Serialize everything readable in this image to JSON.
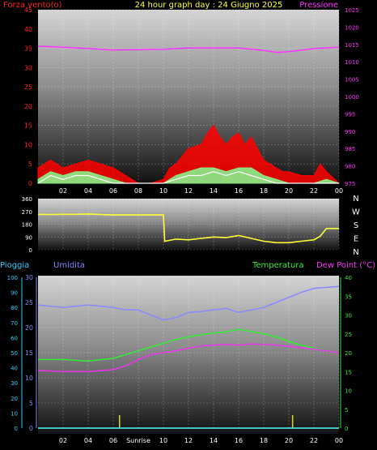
{
  "chart_data": [
    {
      "type": "line",
      "title": "24 hour graph day : 24 Giugno 2025",
      "left_axis_label": "Forza vento",
      "left_axis_unit": "(o)",
      "right_axis_label": "Pressione",
      "x_ticks": [
        "02",
        "04",
        "06",
        "08",
        "10",
        "12",
        "14",
        "16",
        "18",
        "20",
        "22",
        "00"
      ],
      "y_left_ticks": [
        "0",
        "5",
        "10",
        "15",
        "20",
        "25",
        "30",
        "35",
        "40",
        "45"
      ],
      "y_right_ticks": [
        "975",
        "980",
        "985",
        "990",
        "995",
        "1000",
        "1005",
        "1010",
        "1015",
        "1020",
        "1025"
      ],
      "ylim_left": [
        0,
        45
      ],
      "ylim_right": [
        975,
        1025
      ],
      "xlim_hours": [
        0,
        24
      ],
      "grid": true,
      "colors": {
        "gust": "#ff0000",
        "wind": "#88ee88",
        "speed_avg": "#ffffff",
        "pressure": "#ff33ff"
      },
      "series": [
        {
          "role": "pressure",
          "axis": "right",
          "x": [
            0,
            2,
            4,
            6,
            8,
            10,
            12,
            14,
            16,
            18,
            19,
            20,
            22,
            24
          ],
          "values": [
            1014.5,
            1014.2,
            1013.8,
            1013.4,
            1013.5,
            1013.6,
            1014.0,
            1014.0,
            1014.0,
            1013.3,
            1012.7,
            1012.9,
            1013.8,
            1014.2
          ]
        },
        {
          "role": "gust",
          "axis": "left",
          "x": [
            0,
            1,
            2,
            3,
            4,
            5,
            6,
            7,
            8,
            9,
            10,
            10.5,
            11,
            12,
            13,
            13.5,
            14,
            14.5,
            15,
            15.5,
            16,
            16.5,
            17,
            17.5,
            18,
            18.5,
            19,
            19.5,
            20,
            21,
            22,
            22.5,
            23,
            24
          ],
          "values": [
            4,
            6,
            4,
            5,
            6,
            5,
            4,
            2,
            0,
            0,
            1,
            4,
            5,
            9,
            10,
            13,
            15,
            12,
            10,
            12,
            13,
            10,
            12,
            9,
            6,
            5,
            4,
            3,
            3,
            2,
            2,
            5,
            3,
            0
          ]
        },
        {
          "role": "wind",
          "axis": "left",
          "x": [
            0,
            1,
            2,
            3,
            4,
            5,
            6,
            7,
            8,
            10,
            11,
            12,
            13,
            14,
            15,
            16,
            17,
            18,
            19,
            20,
            22,
            23,
            24
          ],
          "values": [
            1,
            3,
            2,
            3,
            3,
            2,
            1,
            0,
            0,
            0,
            2,
            3,
            4,
            4,
            3,
            4,
            4,
            2,
            1,
            0,
            0,
            1,
            0
          ]
        },
        {
          "role": "speed_avg",
          "axis": "left",
          "x": [
            0,
            1,
            2,
            3,
            4,
            5,
            6,
            7,
            8,
            10,
            11,
            12,
            13,
            14,
            15,
            16,
            17,
            18,
            19,
            20,
            22,
            23,
            24
          ],
          "values": [
            0,
            2,
            1,
            2,
            2,
            1,
            0,
            0,
            0,
            0,
            1,
            2,
            2,
            3,
            2,
            3,
            2,
            1,
            0,
            0,
            0,
            0,
            0
          ]
        }
      ]
    },
    {
      "type": "scatter",
      "y_ticks": [
        "360",
        "270",
        "180",
        "90",
        "0"
      ],
      "right_labels": [
        "N",
        "W",
        "S",
        "E",
        "N"
      ],
      "ylim": [
        0,
        360
      ],
      "xlim_hours": [
        0,
        24
      ],
      "grid": true,
      "colors": {
        "direction": "#ffff33"
      },
      "series": [
        {
          "role": "wind_direction",
          "x": [
            0,
            1,
            2,
            3,
            4,
            5,
            6,
            7,
            8,
            9,
            10,
            10.1,
            11,
            12,
            13,
            14,
            15,
            16,
            17,
            18,
            19,
            20,
            21,
            22,
            22.5,
            23,
            24
          ],
          "values": [
            250,
            248,
            250,
            250,
            252,
            248,
            245,
            245,
            245,
            245,
            245,
            60,
            75,
            70,
            80,
            90,
            85,
            100,
            80,
            60,
            50,
            50,
            60,
            70,
            95,
            150,
            150
          ]
        }
      ]
    },
    {
      "type": "line",
      "header_labels": [
        "Pioggia",
        "Umidita",
        "Temperatura",
        "Dew Point (°C)"
      ],
      "x_ticks": [
        "02",
        "04",
        "06",
        "Sunrise",
        "10",
        "12",
        "14",
        "16",
        "18",
        "20",
        "22",
        "00"
      ],
      "y_rain_ticks": [
        "0",
        "10",
        "20",
        "30",
        "40",
        "50",
        "60",
        "70",
        "80",
        "90",
        "100"
      ],
      "y_humidity_ticks": [
        "0",
        "5",
        "10",
        "15",
        "20",
        "25",
        "30"
      ],
      "y_temp_ticks": [
        "0",
        "5",
        "10",
        "15",
        "20",
        "25",
        "30",
        "35",
        "40"
      ],
      "ylim_humidity": [
        0,
        30
      ],
      "ylim_temperature": [
        0,
        40
      ],
      "xlim_hours": [
        0,
        24
      ],
      "grid": true,
      "colors": {
        "humidity": "#8888ff",
        "temperature": "#33ee33",
        "dewpoint": "#ee33ee",
        "rain": "#44ffff",
        "markers": "#dddd00"
      },
      "markers_hours": [
        6.5,
        20.3
      ],
      "series": [
        {
          "role": "humidity",
          "axis": "left_humidity",
          "x": [
            0,
            2,
            4,
            6,
            7,
            8,
            9,
            10,
            11,
            12,
            13,
            14,
            15,
            16,
            17,
            18,
            19,
            20,
            21,
            22,
            23,
            24
          ],
          "values": [
            24.5,
            24,
            24.5,
            24,
            23.5,
            23.5,
            22.5,
            21.5,
            22,
            23,
            23.2,
            23.5,
            23.8,
            23,
            23.5,
            24,
            25,
            26,
            27,
            27.8,
            28,
            28.2
          ]
        },
        {
          "role": "temperature",
          "axis": "right_temp",
          "x": [
            0,
            2,
            4,
            6,
            7,
            8,
            9,
            10,
            11,
            12,
            13,
            14,
            15,
            16,
            17,
            18,
            19,
            20,
            21,
            22,
            23,
            24
          ],
          "values": [
            18.2,
            18.2,
            17.8,
            18.5,
            19.5,
            20.5,
            21.5,
            22.5,
            23.5,
            24.2,
            24.8,
            25.2,
            25.5,
            26.2,
            25.6,
            25,
            24.2,
            23,
            22,
            21.2,
            20.5,
            20
          ]
        },
        {
          "role": "dewpoint",
          "axis": "right_temp",
          "x": [
            0,
            2,
            4,
            6,
            7,
            8,
            9,
            10,
            11,
            12,
            13,
            14,
            15,
            16,
            17,
            18,
            19,
            20,
            21,
            22,
            23,
            24
          ],
          "values": [
            15.3,
            15,
            15,
            15.5,
            16.5,
            18.2,
            19.5,
            20,
            20.5,
            21.2,
            21.8,
            22,
            22.2,
            22,
            22.3,
            22.2,
            22,
            21.7,
            21.3,
            21,
            20.5,
            20
          ]
        },
        {
          "role": "rain",
          "axis": "left_rain",
          "x": [
            0,
            24
          ],
          "values": [
            0,
            0
          ]
        }
      ]
    }
  ]
}
